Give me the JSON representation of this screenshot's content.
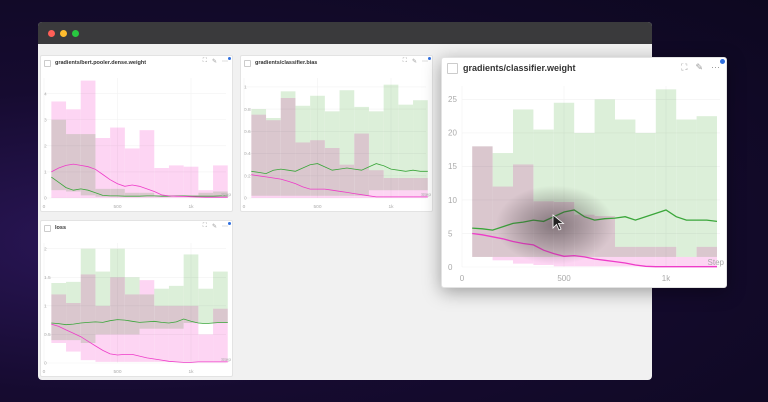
{
  "window": {
    "traffic_lights": [
      "#ff5f57",
      "#febc2e",
      "#28c840"
    ]
  },
  "colors": {
    "series_a": "#3aa63a",
    "series_b": "#ee3cc9",
    "band_a": "#dcefd9",
    "band_b": "#fdd5f3",
    "accent": "#2f6fe0"
  },
  "icons": [
    "fullscreen-icon",
    "pencil-icon",
    "more-icon"
  ],
  "chart_data": [
    {
      "id": "bert",
      "type": "line",
      "title": "gradients/bert.pooler.dense.weight",
      "xlabel": "Step",
      "xticks": [
        {
          "v": 0,
          "l": "0"
        },
        {
          "v": 500,
          "l": "500"
        },
        {
          "v": 1000,
          "l": "1k"
        }
      ],
      "yticks": [
        {
          "v": 0,
          "l": "0"
        },
        {
          "v": 1,
          "l": "1"
        },
        {
          "v": 2,
          "l": "2"
        },
        {
          "v": 3,
          "l": "3"
        },
        {
          "v": 4,
          "l": "4"
        }
      ],
      "ylim": [
        0,
        4.6
      ],
      "xlim": [
        0,
        1250
      ],
      "series": [
        {
          "name": "green",
          "line": [
            0.8,
            0.6,
            0.4,
            0.3,
            0.35,
            0.3,
            0.2,
            0.1,
            0.08,
            0.08,
            0.07,
            0.07,
            0.07,
            0.08,
            0.08,
            0.07,
            0.07,
            0.08,
            0.08,
            0.07,
            0.07,
            0.07,
            0.07,
            0.08,
            0.08
          ],
          "band_hi": [
            3.0,
            2.45,
            2.45,
            0.35,
            0.35,
            0.2,
            0.2,
            0.1,
            0.1,
            0.1,
            0.2,
            0.25
          ],
          "band_lo": [
            0.3,
            0.25,
            0.1,
            0.05,
            0.05,
            0.05,
            0.05,
            0.05,
            0.05,
            0.05,
            0.05,
            0.05
          ]
        },
        {
          "name": "pink",
          "line": [
            1.0,
            1.15,
            1.25,
            1.3,
            1.25,
            1.2,
            1.1,
            0.9,
            0.7,
            0.55,
            0.45,
            0.5,
            0.45,
            0.35,
            0.25,
            0.12,
            0.08,
            0.07,
            0.06,
            0.05,
            0.04,
            0.03,
            0.03,
            0.03,
            0.03
          ],
          "band_hi": [
            3.7,
            3.4,
            4.5,
            2.3,
            2.7,
            1.9,
            2.6,
            1.15,
            1.25,
            1.2,
            0.3,
            1.25
          ],
          "band_lo": [
            0,
            0,
            0,
            0,
            0,
            0,
            0,
            0,
            0,
            0,
            0,
            0
          ]
        }
      ]
    },
    {
      "id": "bias",
      "type": "line",
      "title": "gradients/classifier.bias",
      "xlabel": "Step",
      "xticks": [
        {
          "v": 0,
          "l": "0"
        },
        {
          "v": 500,
          "l": "500"
        },
        {
          "v": 1000,
          "l": "1k"
        }
      ],
      "yticks": [
        {
          "v": 0,
          "l": "0"
        },
        {
          "v": 0.2,
          "l": "0.2"
        },
        {
          "v": 0.4,
          "l": "0.4"
        },
        {
          "v": 0.6,
          "l": "0.6"
        },
        {
          "v": 0.8,
          "l": "0.8"
        },
        {
          "v": 1,
          "l": "1"
        }
      ],
      "ylim": [
        0,
        1.08
      ],
      "xlim": [
        0,
        1250
      ],
      "series": [
        {
          "name": "green",
          "line": [
            0.24,
            0.23,
            0.22,
            0.25,
            0.26,
            0.25,
            0.24,
            0.27,
            0.3,
            0.31,
            0.28,
            0.25,
            0.26,
            0.27,
            0.26,
            0.25,
            0.28,
            0.31,
            0.29,
            0.26,
            0.25,
            0.24,
            0.25,
            0.24,
            0.24
          ],
          "band_hi": [
            0.8,
            0.72,
            0.96,
            0.83,
            0.92,
            0.78,
            0.97,
            0.82,
            0.78,
            1.02,
            0.84,
            0.88
          ],
          "band_lo": [
            0.02,
            0.02,
            0.02,
            0.02,
            0.02,
            0.02,
            0.02,
            0.02,
            0.07,
            0.07,
            0.07,
            0.07
          ]
        },
        {
          "name": "pink",
          "line": [
            0.21,
            0.2,
            0.19,
            0.18,
            0.17,
            0.15,
            0.13,
            0.1,
            0.08,
            0.08,
            0.08,
            0.07,
            0.06,
            0.05,
            0.04,
            0.03,
            0.02,
            0.01,
            0.01,
            0.01,
            0.01,
            0.01,
            0.01,
            0.01,
            0.01
          ],
          "band_hi": [
            0.75,
            0.7,
            0.9,
            0.5,
            0.52,
            0.45,
            0.3,
            0.58,
            0.25,
            0.18,
            0.18,
            0.18
          ],
          "band_lo": [
            0,
            0,
            0,
            0,
            0,
            0,
            0,
            0,
            0,
            0,
            0,
            0
          ]
        }
      ]
    },
    {
      "id": "loss",
      "type": "line",
      "title": "loss",
      "xlabel": "Step",
      "xticks": [
        {
          "v": 0,
          "l": "0"
        },
        {
          "v": 500,
          "l": "500"
        },
        {
          "v": 1000,
          "l": "1k"
        }
      ],
      "yticks": [
        {
          "v": 0,
          "l": "0"
        },
        {
          "v": 0.5,
          "l": "0.5"
        },
        {
          "v": 1,
          "l": "1"
        },
        {
          "v": 1.5,
          "l": "1.5"
        },
        {
          "v": 2,
          "l": "2"
        }
      ],
      "ylim": [
        0,
        2.1
      ],
      "xlim": [
        0,
        1250
      ],
      "series": [
        {
          "name": "green",
          "line": [
            0.7,
            0.69,
            0.67,
            0.68,
            0.7,
            0.71,
            0.72,
            0.71,
            0.74,
            0.76,
            0.75,
            0.73,
            0.71,
            0.72,
            0.73,
            0.71,
            0.7,
            0.72,
            0.77,
            0.73,
            0.7,
            0.69,
            0.7,
            0.71,
            0.71
          ],
          "band_hi": [
            1.4,
            1.42,
            2.0,
            1.6,
            2.0,
            1.5,
            1.2,
            1.3,
            1.35,
            1.9,
            1.3,
            1.6
          ],
          "band_lo": [
            0.4,
            0.4,
            0.35,
            0.5,
            0.5,
            0.5,
            0.6,
            0.6,
            0.6,
            0.7,
            0.7,
            0.7
          ]
        },
        {
          "name": "pink",
          "line": [
            0.68,
            0.64,
            0.58,
            0.52,
            0.46,
            0.38,
            0.3,
            0.22,
            0.16,
            0.14,
            0.15,
            0.15,
            0.12,
            0.09,
            0.07,
            0.05,
            0.03,
            0.02,
            0.01,
            0.01,
            0.02,
            0.02,
            0.02,
            0.02,
            0.02
          ],
          "band_hi": [
            1.2,
            1.05,
            1.55,
            1.0,
            1.5,
            1.2,
            1.45,
            1.0,
            1.0,
            1.0,
            0.5,
            0.95
          ],
          "band_lo": [
            0.35,
            0.2,
            0.05,
            0.02,
            0.02,
            0.02,
            0.02,
            0.02,
            0.02,
            0.02,
            0.02,
            0.02
          ]
        }
      ]
    },
    {
      "id": "weight",
      "type": "line",
      "title": "gradients/classifier.weight",
      "xlabel": "Step",
      "xticks": [
        {
          "v": 0,
          "l": "0"
        },
        {
          "v": 500,
          "l": "500"
        },
        {
          "v": 1000,
          "l": "1k"
        }
      ],
      "yticks": [
        {
          "v": 0,
          "l": "0"
        },
        {
          "v": 5,
          "l": "5"
        },
        {
          "v": 10,
          "l": "10"
        },
        {
          "v": 15,
          "l": "15"
        },
        {
          "v": 20,
          "l": "20"
        },
        {
          "v": 25,
          "l": "25"
        }
      ],
      "ylim": [
        0,
        27
      ],
      "xlim": [
        0,
        1250
      ],
      "series": [
        {
          "name": "green",
          "line": [
            5.8,
            5.7,
            5.5,
            6,
            6.5,
            6.7,
            7,
            6.8,
            7.5,
            8.2,
            8.5,
            7.5,
            7,
            7.2,
            7.3,
            7.5,
            7,
            7.5,
            8,
            8.5,
            7.5,
            7,
            7,
            7,
            6.8
          ],
          "band_hi": [
            18,
            17,
            23.5,
            20.5,
            24.5,
            20,
            25,
            22,
            20,
            26.5,
            22,
            22.5
          ],
          "band_lo": [
            1.5,
            1.5,
            1.5,
            1.5,
            1.5,
            1.5,
            1.5,
            1.5,
            1.5,
            1.5,
            1.5,
            1.5
          ]
        },
        {
          "name": "pink",
          "line": [
            5,
            4.8,
            4.5,
            4.2,
            3.8,
            3.5,
            3.3,
            2.5,
            2,
            1.6,
            1.7,
            1.5,
            1.2,
            1,
            0.8,
            0.6,
            0.3,
            0.1,
            0.05,
            0.05,
            0.05,
            0.05,
            0.05,
            0.05,
            0.05
          ],
          "band_hi": [
            18,
            12,
            15.3,
            9.8,
            9.7,
            7.8,
            7.6,
            3,
            3,
            3,
            1.5,
            3
          ],
          "band_lo": [
            1.5,
            1,
            0.5,
            0.3,
            0.1,
            0.1,
            0.1,
            0.1,
            0.1,
            0.1,
            0.1,
            0.1
          ]
        }
      ]
    }
  ]
}
